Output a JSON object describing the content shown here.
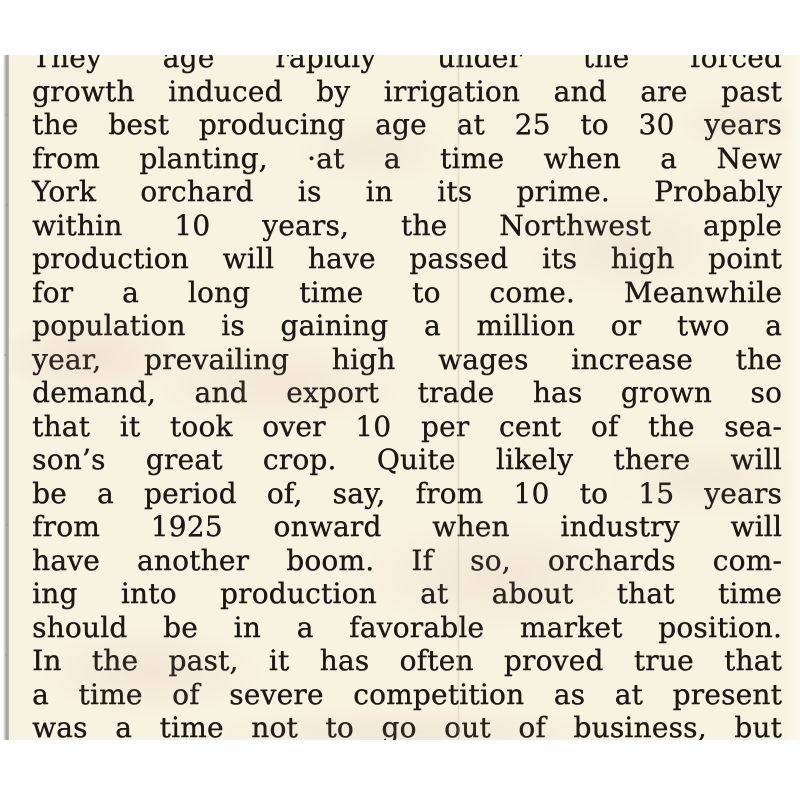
{
  "page": {
    "background_color": "#ffffff"
  },
  "clipping": {
    "paper_color": "#f8f3e1",
    "ink_color": "#1b1713",
    "edge_color": "#9d9c98",
    "lines": [
      "They age rapidly under the forced",
      "growth induced by irrigation and are past",
      "the best producing age at 25 to 30 years",
      "from planting, ·at a time when a New",
      "York orchard is in its prime.  Probably",
      "within 10 years, the Northwest apple",
      "production will have passed its high point",
      "for a long time to come.  Meanwhile",
      "population is gaining a million or two a",
      "year, prevailing high wages increase the",
      "demand, and export trade has grown so",
      "that it took over 10 per cent of the sea-",
      "son’s great crop.  Quite likely there will",
      "be a period of, say, from 10 to 15 years",
      "from 1925 onward when industry will",
      "have another boom.  If so, orchards com-",
      "ing into production at about that time",
      "should be in a favorable market position.",
      "In the past, it has often proved true that",
      "a time of severe competition as at present",
      "was a time not to go out of business, but"
    ]
  }
}
